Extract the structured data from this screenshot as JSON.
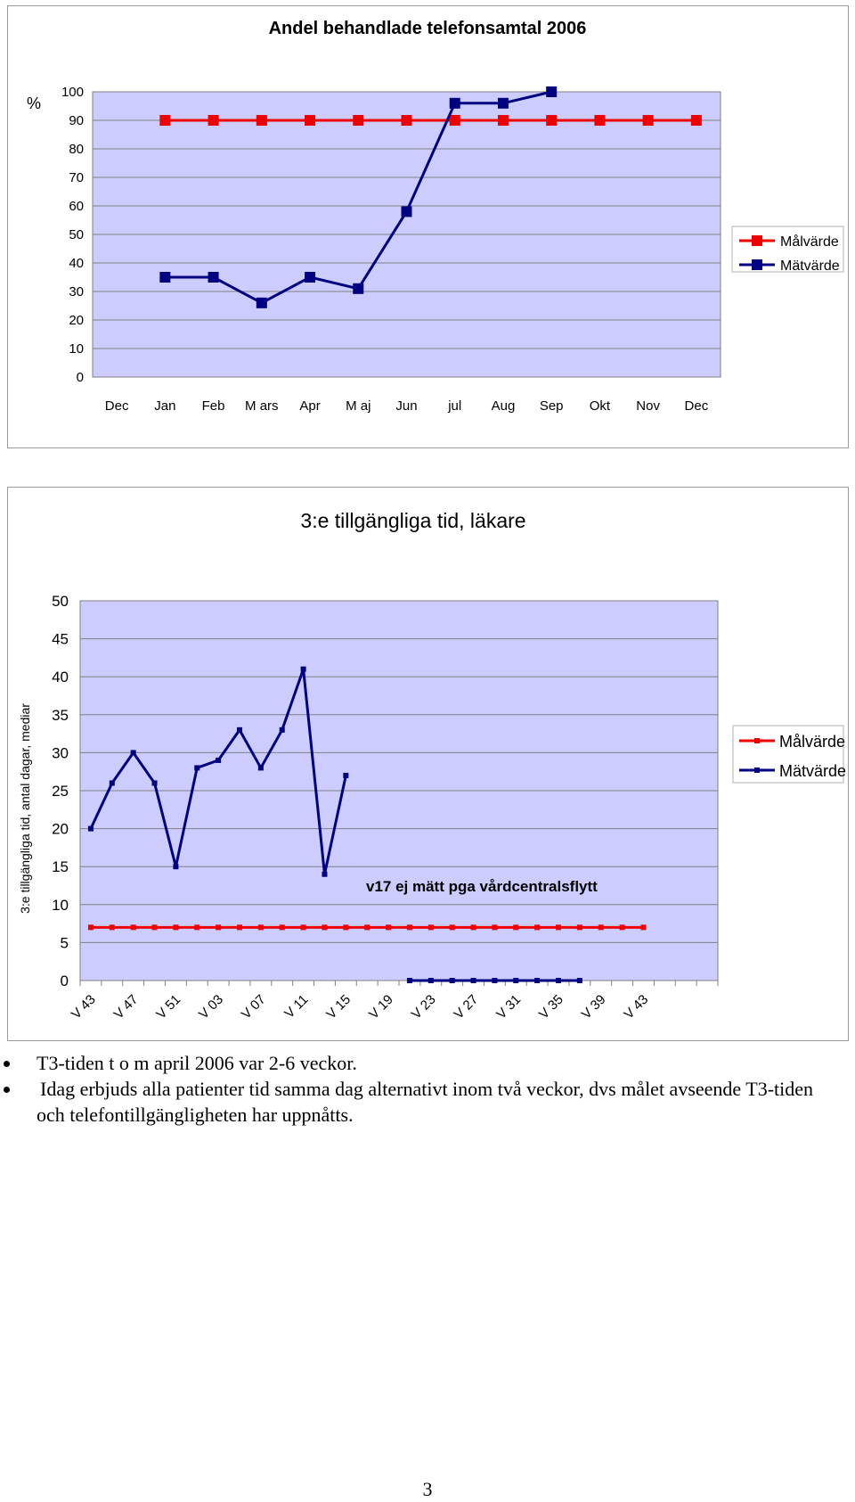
{
  "chart_data": [
    {
      "type": "line",
      "title": "Andel behandlade telefonsamtal 2006",
      "ylabel": "%",
      "ylim": [
        0,
        100
      ],
      "yticks": [
        0,
        10,
        20,
        30,
        40,
        50,
        60,
        70,
        80,
        90,
        100
      ],
      "categories": [
        "Dec",
        "Jan",
        "Feb",
        "M ars",
        "Apr",
        "M aj",
        "Jun",
        "jul",
        "Aug",
        "Sep",
        "Okt",
        "Nov",
        "Dec"
      ],
      "grid": true,
      "legend_position": "right",
      "series": [
        {
          "name": "Målvärde",
          "color": "#ee0000",
          "values": [
            null,
            90,
            90,
            90,
            90,
            90,
            90,
            90,
            90,
            90,
            90,
            90,
            90
          ]
        },
        {
          "name": "Mätvärde",
          "color": "#000080",
          "values": [
            null,
            35,
            35,
            26,
            35,
            31,
            58,
            96,
            96,
            100,
            null,
            null,
            null
          ]
        }
      ]
    },
    {
      "type": "line",
      "title": "3:e tillgängliga tid, läkare",
      "ylabel": "3:e tillgängliga tid, antal dagar, mediar",
      "ylim": [
        0,
        50
      ],
      "yticks": [
        0,
        5,
        10,
        15,
        20,
        25,
        30,
        35,
        40,
        45,
        50
      ],
      "tick_labels": [
        "V 43",
        "V 47",
        "V 51",
        "V 03",
        "V 07",
        "V 11",
        "V 15",
        "V 19",
        "V 23",
        "V 27",
        "V 31",
        "V 35",
        "V 39",
        "V 43"
      ],
      "grid": true,
      "legend_position": "right",
      "annotation": "v17 ej mätt pga vårdcentralsflytt",
      "series": [
        {
          "name": "Målvärde",
          "color": "#ee0000",
          "values": [
            7,
            7,
            7,
            7,
            7,
            7,
            7,
            7,
            7,
            7,
            7,
            7,
            7,
            7,
            7,
            7,
            7,
            7,
            7,
            7,
            7,
            7,
            7,
            7,
            7,
            7,
            7,
            null,
            null,
            null
          ]
        },
        {
          "name": "Mätvärde",
          "color": "#000080",
          "values": [
            20,
            26,
            30,
            26,
            15,
            28,
            29,
            33,
            28,
            33,
            41,
            14,
            27,
            null,
            null,
            0,
            0,
            0,
            0,
            0,
            0,
            0,
            0,
            0,
            null,
            null,
            null,
            null,
            null,
            null
          ]
        }
      ]
    }
  ],
  "notes": [
    "T3-tiden t o m april 2006 var 2-6 veckor.",
    "Idag erbjuds alla patienter tid samma dag alternativt inom två veckor, dvs målet avseende T3-tiden och telefontillgängligheten har uppnåtts."
  ],
  "page_number": "3"
}
